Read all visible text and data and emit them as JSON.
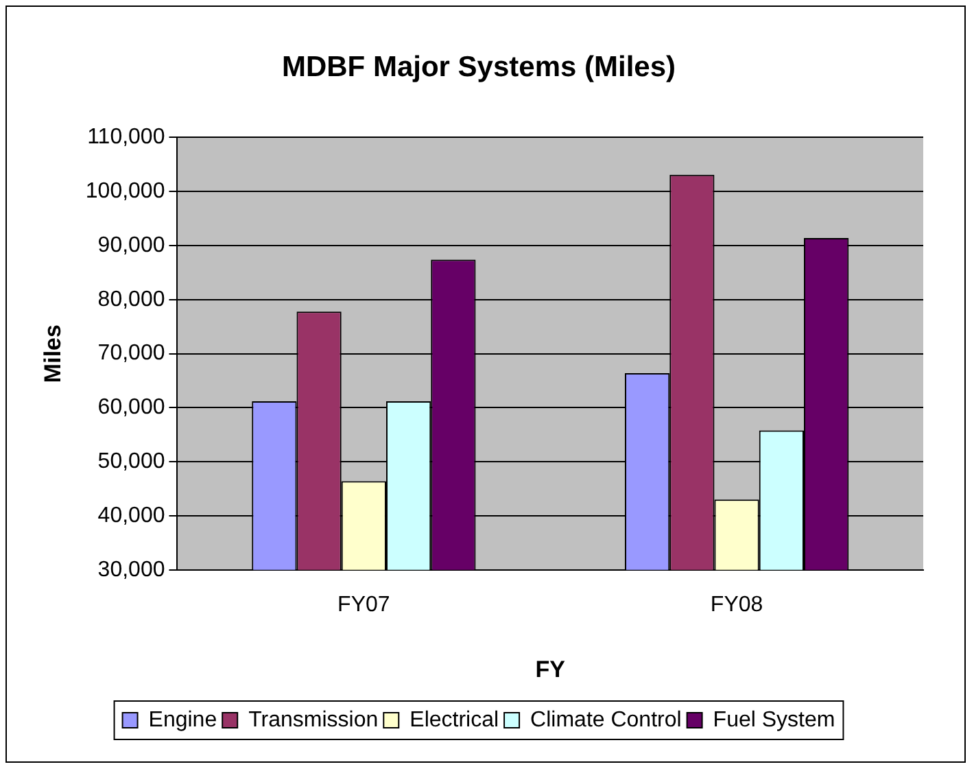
{
  "chart_data": {
    "type": "bar",
    "title": "MDBF Major Systems (Miles)",
    "xlabel": "FY",
    "ylabel": "Miles",
    "categories": [
      "FY07",
      "FY08"
    ],
    "series": [
      {
        "name": "Engine",
        "color": "#9999ff",
        "values": [
          61200,
          66400
        ]
      },
      {
        "name": "Transmission",
        "color": "#993366",
        "values": [
          77800,
          103100
        ]
      },
      {
        "name": "Electrical",
        "color": "#ffffcc",
        "values": [
          46400,
          43000
        ]
      },
      {
        "name": "Climate Control",
        "color": "#ccffff",
        "values": [
          61200,
          55800
        ]
      },
      {
        "name": "Fuel System",
        "color": "#660066",
        "values": [
          87400,
          91400
        ]
      }
    ],
    "ylim": [
      30000,
      110000
    ],
    "yticks": [
      {
        "value": 30000,
        "label": "30,000"
      },
      {
        "value": 40000,
        "label": "40,000"
      },
      {
        "value": 50000,
        "label": "50,000"
      },
      {
        "value": 60000,
        "label": "60,000"
      },
      {
        "value": 70000,
        "label": "70,000"
      },
      {
        "value": 80000,
        "label": "80,000"
      },
      {
        "value": 90000,
        "label": "90,000"
      },
      {
        "value": 100000,
        "label": "100,000"
      },
      {
        "value": 110000,
        "label": "110,000"
      }
    ],
    "grid": "y",
    "legend": "bottom"
  }
}
